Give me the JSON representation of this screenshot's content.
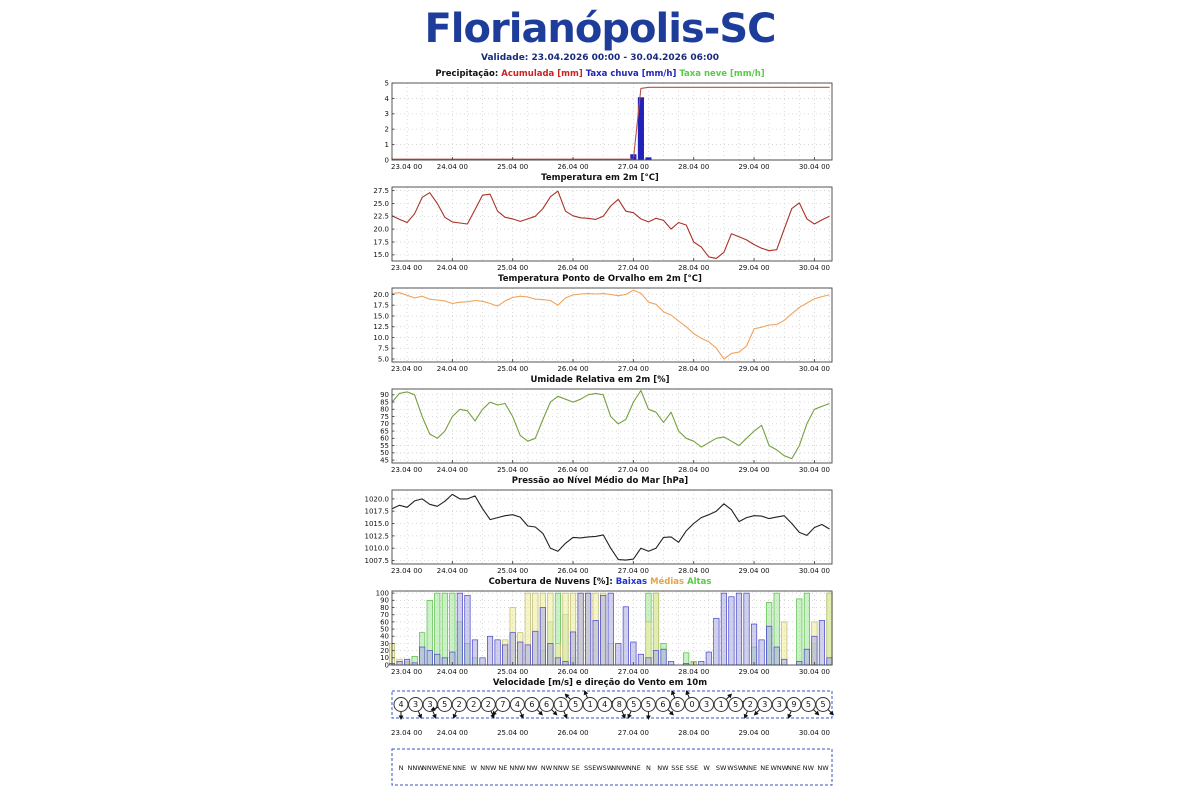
{
  "page": {
    "title": "Florianópolis-SC",
    "validity": "Validade: 23.04.2026 00:00 - 30.04.2026 06:00"
  },
  "colors": {
    "title_blue": "#1e3d9a",
    "accumulated_red": "#b5524a",
    "rain_blue": "#2222bb",
    "snow_green": "#55cc44",
    "temperature_red": "#a93226",
    "dewpoint_orange": "#f0a35e",
    "humidity_green": "#76a03f",
    "pressure_black": "#222222",
    "cloud_low_blue": "#4444cc",
    "cloud_mid_khaki": "#bdb76b",
    "cloud_high_green": "#55bb44",
    "wind_box_blue": "#3355cc"
  },
  "x_axis": {
    "xlim": [
      0,
      175
    ],
    "tick_hours": [
      0,
      24,
      48,
      72,
      96,
      120,
      144,
      168
    ],
    "tick_labels": [
      "23.04 00",
      "24.04 00",
      "25.04 00",
      "26.04 00",
      "27.04 00",
      "28.04 00",
      "29.04 00",
      "30.04 00"
    ]
  },
  "chart_data": [
    {
      "id": "precipitation",
      "type": "line",
      "title_parts": [
        {
          "text": "Precipitação: ",
          "color": "#111111"
        },
        {
          "text": "Acumulada [mm]",
          "color": "#cc2222"
        },
        {
          "text": " ",
          "color": "#111111"
        },
        {
          "text": "Taxa chuva [mm/h]",
          "color": "#2222bb"
        },
        {
          "text": " ",
          "color": "#111111"
        },
        {
          "text": "Taxa neve [mm/h]",
          "color": "#55cc44"
        }
      ],
      "x_step": 3,
      "ylim": [
        0,
        5
      ],
      "yticks": [
        [
          0,
          "0"
        ],
        [
          1,
          "1"
        ],
        [
          2,
          "2"
        ],
        [
          3,
          "3"
        ],
        [
          4,
          "4"
        ],
        [
          5,
          "5"
        ]
      ],
      "series": [
        {
          "name": "Taxa chuva [mm/h]",
          "type": "bar",
          "color": "#2222bb",
          "fill": "#2222bb",
          "fill_opacity": 1,
          "values": [
            0,
            0,
            0,
            0,
            0,
            0,
            0,
            0,
            0,
            0,
            0,
            0,
            0,
            0,
            0,
            0,
            0,
            0,
            0,
            0,
            0,
            0,
            0,
            0,
            0,
            0,
            0,
            0,
            0,
            0,
            0,
            0,
            0.35,
            4.05,
            0.15,
            0,
            0,
            0,
            0,
            0,
            0,
            0,
            0,
            0,
            0,
            0,
            0,
            0,
            0,
            0,
            0,
            0,
            0,
            0,
            0,
            0,
            0,
            0,
            0
          ]
        },
        {
          "name": "Taxa neve [mm/h]",
          "type": "line",
          "color": "#55cc44",
          "values": [
            0,
            0,
            0,
            0,
            0,
            0,
            0,
            0,
            0,
            0,
            0,
            0,
            0,
            0,
            0,
            0,
            0,
            0,
            0,
            0,
            0,
            0,
            0,
            0,
            0,
            0,
            0,
            0,
            0,
            0,
            0,
            0,
            0,
            0,
            0,
            0,
            0,
            0,
            0,
            0,
            0,
            0,
            0,
            0,
            0,
            0,
            0,
            0,
            0,
            0,
            0,
            0,
            0,
            0,
            0,
            0,
            0,
            0,
            0
          ]
        },
        {
          "name": "Acumulada [mm]",
          "type": "line",
          "color": "#b5524a",
          "values": [
            0.05,
            0.05,
            0.05,
            0.05,
            0.05,
            0.05,
            0.05,
            0.05,
            0.05,
            0.05,
            0.05,
            0.05,
            0.05,
            0.05,
            0.05,
            0.05,
            0.05,
            0.05,
            0.05,
            0.05,
            0.05,
            0.05,
            0.05,
            0.05,
            0.05,
            0.05,
            0.05,
            0.05,
            0.05,
            0.05,
            0.05,
            0.05,
            0.05,
            4.65,
            4.72,
            4.72,
            4.72,
            4.72,
            4.72,
            4.72,
            4.72,
            4.72,
            4.72,
            4.72,
            4.72,
            4.72,
            4.72,
            4.72,
            4.72,
            4.72,
            4.72,
            4.72,
            4.72,
            4.72,
            4.72,
            4.72,
            4.72,
            4.72,
            4.72
          ]
        }
      ]
    },
    {
      "id": "temperature",
      "type": "line",
      "title_parts": [
        {
          "text": "Temperatura em 2m [°C]",
          "color": "#111111"
        }
      ],
      "x_step": 3,
      "ylim": [
        13.8,
        28.2
      ],
      "yticks": [
        [
          15,
          "15.0"
        ],
        [
          17.5,
          "17.5"
        ],
        [
          20,
          "20.0"
        ],
        [
          22.5,
          "22.5"
        ],
        [
          25,
          "25.0"
        ],
        [
          27.5,
          "27.5"
        ]
      ],
      "series": [
        {
          "name": "Temperatura",
          "type": "line",
          "color": "#a93226",
          "values": [
            22.6,
            21.9,
            21.3,
            23.0,
            26.2,
            27.1,
            25.0,
            22.3,
            21.4,
            21.2,
            21.0,
            23.8,
            26.6,
            26.8,
            23.5,
            22.3,
            22.0,
            21.5,
            22.0,
            22.5,
            24.0,
            26.3,
            27.4,
            23.5,
            22.6,
            22.2,
            22.1,
            21.9,
            22.5,
            24.5,
            25.8,
            23.5,
            23.2,
            22.0,
            21.4,
            22.1,
            21.7,
            20.0,
            21.3,
            20.8,
            17.5,
            16.5,
            14.6,
            14.3,
            15.5,
            19.1,
            18.5,
            17.9,
            17.0,
            16.3,
            15.8,
            16.0,
            20.0,
            24.0,
            25.1,
            22.0,
            21.0,
            21.8,
            22.5
          ]
        }
      ]
    },
    {
      "id": "dewpoint",
      "type": "line",
      "title_parts": [
        {
          "text": "Temperatura Ponto de Orvalho em 2m [°C]",
          "color": "#111111"
        }
      ],
      "x_step": 3,
      "ylim": [
        4.3,
        21.5
      ],
      "yticks": [
        [
          5,
          "5.0"
        ],
        [
          7.5,
          "7.5"
        ],
        [
          10,
          "10.0"
        ],
        [
          12.5,
          "12.5"
        ],
        [
          15,
          "15.0"
        ],
        [
          17.5,
          "17.5"
        ],
        [
          20,
          "20.0"
        ]
      ],
      "series": [
        {
          "name": "Ponto de Orvalho",
          "type": "line",
          "color": "#f0a35e",
          "values": [
            20.2,
            20.4,
            19.8,
            19.2,
            19.6,
            18.9,
            18.7,
            18.5,
            17.9,
            18.2,
            18.3,
            18.6,
            18.4,
            17.9,
            17.3,
            18.5,
            19.3,
            19.6,
            19.4,
            18.9,
            18.8,
            18.6,
            17.5,
            19.2,
            19.9,
            20.1,
            20.2,
            20.1,
            20.2,
            20.0,
            19.7,
            20.0,
            21.0,
            20.3,
            18.2,
            17.7,
            16.0,
            15.2,
            13.8,
            12.5,
            10.9,
            9.8,
            9.0,
            7.5,
            5.0,
            6.3,
            6.6,
            8.0,
            12.0,
            12.4,
            12.9,
            13.0,
            14.0,
            15.5,
            17.0,
            18.0,
            19.0,
            19.5,
            19.9
          ]
        }
      ]
    },
    {
      "id": "humidity",
      "type": "line",
      "title_parts": [
        {
          "text": "Umidade Relativa em 2m [%]",
          "color": "#111111"
        }
      ],
      "x_step": 3,
      "ylim": [
        43,
        94
      ],
      "yticks": [
        [
          45,
          "45"
        ],
        [
          50,
          "50"
        ],
        [
          55,
          "55"
        ],
        [
          60,
          "60"
        ],
        [
          65,
          "65"
        ],
        [
          70,
          "70"
        ],
        [
          75,
          "75"
        ],
        [
          80,
          "80"
        ],
        [
          85,
          "85"
        ],
        [
          90,
          "90"
        ]
      ],
      "series": [
        {
          "name": "Umidade Relativa",
          "type": "line",
          "color": "#76a03f",
          "values": [
            85,
            91,
            92,
            90,
            75,
            63,
            60,
            65,
            75,
            80,
            79,
            72,
            80,
            85,
            83,
            84,
            75,
            62,
            58,
            60,
            73,
            85,
            89,
            87,
            85,
            87,
            90,
            91,
            90,
            75,
            70,
            73,
            85,
            93,
            80,
            78,
            71,
            78,
            65,
            60,
            58,
            54,
            57,
            60,
            61,
            58,
            55,
            60,
            65,
            69,
            55,
            52,
            48,
            46,
            55,
            70,
            80,
            82,
            84
          ]
        }
      ]
    },
    {
      "id": "pressure",
      "type": "line",
      "title_parts": [
        {
          "text": "Pressão ao Nível Médio do Mar [hPa]",
          "color": "#111111"
        }
      ],
      "x_step": 3,
      "ylim": [
        1006.8,
        1021.8
      ],
      "yticks": [
        [
          1007.5,
          "1007.5"
        ],
        [
          1010,
          "1010.0"
        ],
        [
          1012.5,
          "1012.5"
        ],
        [
          1015,
          "1015.0"
        ],
        [
          1017.5,
          "1017.5"
        ],
        [
          1020,
          "1020.0"
        ]
      ],
      "series": [
        {
          "name": "Pressão",
          "type": "line",
          "color": "#222222",
          "values": [
            1018.0,
            1018.7,
            1018.3,
            1019.6,
            1020.0,
            1018.9,
            1018.5,
            1019.5,
            1020.9,
            1020.0,
            1020.0,
            1020.6,
            1018.0,
            1015.8,
            1016.2,
            1016.6,
            1016.8,
            1016.3,
            1014.5,
            1014.3,
            1013.0,
            1010.0,
            1009.4,
            1011.0,
            1012.2,
            1012.1,
            1012.3,
            1012.4,
            1012.7,
            1010.0,
            1007.7,
            1007.6,
            1007.8,
            1010.0,
            1009.4,
            1010.0,
            1012.2,
            1012.3,
            1011.2,
            1013.5,
            1015.0,
            1016.2,
            1016.8,
            1017.5,
            1019.0,
            1017.8,
            1015.4,
            1016.2,
            1016.6,
            1016.5,
            1016.0,
            1016.3,
            1016.6,
            1015.0,
            1013.2,
            1012.6,
            1014.2,
            1014.8,
            1013.9
          ]
        }
      ]
    },
    {
      "id": "clouds",
      "type": "bar",
      "title_parts": [
        {
          "text": "Cobertura de Nuvens [%]: ",
          "color": "#111111"
        },
        {
          "text": "Baixas",
          "color": "#2233cc"
        },
        {
          "text": " ",
          "color": "#111111"
        },
        {
          "text": "Médias",
          "color": "#e8a33d"
        },
        {
          "text": " ",
          "color": "#111111"
        },
        {
          "text": "Altas",
          "color": "#55cc44"
        }
      ],
      "x_step": 3,
      "ylim": [
        0,
        103
      ],
      "yticks": [
        [
          0,
          "0"
        ],
        [
          10,
          "10"
        ],
        [
          20,
          "20"
        ],
        [
          30,
          "30"
        ],
        [
          40,
          "40"
        ],
        [
          50,
          "50"
        ],
        [
          60,
          "60"
        ],
        [
          70,
          "70"
        ],
        [
          80,
          "80"
        ],
        [
          90,
          "90"
        ],
        [
          100,
          "100"
        ]
      ],
      "series": [
        {
          "name": "Altas",
          "type": "bar",
          "color": "#55bb44",
          "fill": "#a8e8a0",
          "fill_opacity": 0.6,
          "values": [
            0,
            0,
            3,
            12,
            45,
            90,
            100,
            100,
            100,
            60,
            30,
            10,
            0,
            0,
            0,
            0,
            0,
            0,
            0,
            0,
            20,
            60,
            100,
            70,
            10,
            0,
            0,
            0,
            0,
            0,
            0,
            0,
            0,
            0,
            100,
            100,
            30,
            0,
            0,
            17,
            5,
            0,
            0,
            0,
            0,
            0,
            0,
            0,
            25,
            0,
            87,
            100,
            0,
            0,
            92,
            100,
            30,
            0,
            100
          ]
        },
        {
          "name": "Médias",
          "type": "bar",
          "color": "#bdb76b",
          "fill": "#eeeea0",
          "fill_opacity": 0.6,
          "values": [
            30,
            8,
            5,
            0,
            0,
            0,
            0,
            0,
            0,
            0,
            0,
            0,
            0,
            0,
            0,
            35,
            80,
            45,
            100,
            100,
            100,
            100,
            30,
            100,
            100,
            100,
            100,
            100,
            100,
            30,
            0,
            0,
            0,
            0,
            60,
            100,
            0,
            0,
            0,
            0,
            3,
            0,
            0,
            0,
            0,
            0,
            0,
            0,
            0,
            0,
            0,
            0,
            60,
            0,
            0,
            0,
            60,
            0,
            100
          ]
        },
        {
          "name": "Baixas",
          "type": "bar",
          "color": "#4444cc",
          "fill": "#aaaadd",
          "fill_opacity": 0.55,
          "values": [
            2,
            5,
            8,
            3,
            25,
            20,
            15,
            10,
            18,
            100,
            97,
            35,
            10,
            40,
            35,
            28,
            45,
            32,
            28,
            47,
            80,
            30,
            10,
            5,
            46,
            100,
            100,
            62,
            97,
            100,
            30,
            81,
            32,
            15,
            10,
            20,
            22,
            5,
            0,
            2,
            0,
            5,
            18,
            65,
            100,
            95,
            100,
            100,
            57,
            35,
            54,
            25,
            8,
            0,
            5,
            22,
            40,
            62,
            10
          ]
        }
      ]
    },
    {
      "id": "wind",
      "type": "wind",
      "title_parts": [
        {
          "text": "Velocidade [m/s] e direção do Vento em 10m",
          "color": "#111111"
        }
      ],
      "x_step": 6,
      "speeds": [
        4,
        3,
        3,
        5,
        2,
        2,
        2,
        7,
        4,
        6,
        6,
        1,
        5,
        1,
        4,
        8,
        5,
        5,
        6,
        6,
        0,
        3,
        1,
        5,
        2,
        3,
        3,
        9,
        5,
        5
      ],
      "directions": [
        "N",
        "NNW",
        "NNW",
        "ENE",
        "NNE",
        "W",
        "NNW",
        "NE",
        "NNW",
        "NW",
        "NW",
        "NNW",
        "SE",
        "SSE",
        "WSW",
        "NNW",
        "NNE",
        "N",
        "NW",
        "SSE",
        "SSE",
        "W",
        "SW",
        "WSW",
        "NNE",
        "NE",
        "WNW",
        "NNE",
        "NW",
        "NW"
      ]
    }
  ]
}
